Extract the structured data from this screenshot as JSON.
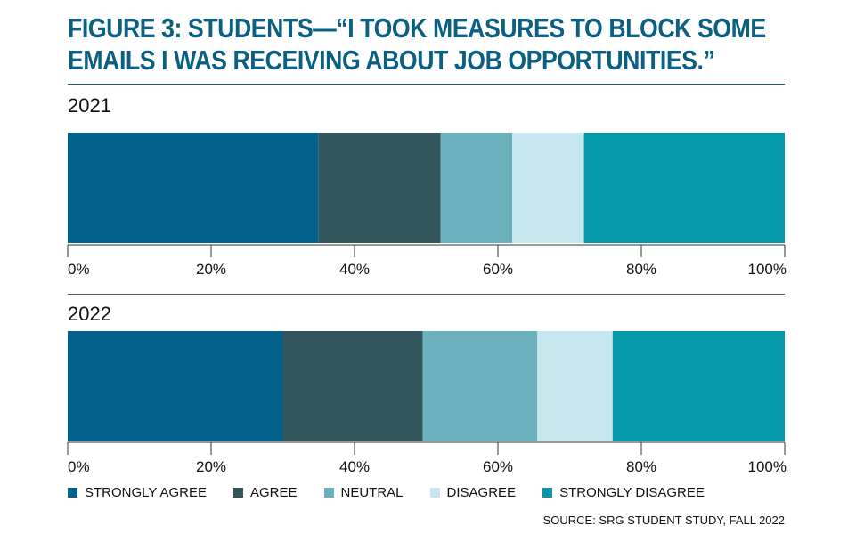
{
  "title_line1": "FIGURE 3: STUDENTS—“I TOOK MEASURES TO BLOCK SOME",
  "title_line2": "EMAILS I WAS RECEIVING ABOUT JOB OPPORTUNITIES.”",
  "source": "SOURCE: SRG STUDENT STUDY, FALL 2022",
  "chart_data": {
    "type": "bar",
    "orientation": "horizontal-stacked-100",
    "title": "FIGURE 3: STUDENTS—“I TOOK MEASURES TO BLOCK SOME EMAILS I WAS RECEIVING ABOUT JOB OPPORTUNITIES.”",
    "categories": [
      "2021",
      "2022"
    ],
    "xlim": [
      0,
      100
    ],
    "xticks": [
      "0%",
      "20%",
      "40%",
      "60%",
      "80%",
      "100%"
    ],
    "grid": false,
    "legend_position": "bottom",
    "series": [
      {
        "name": "STRONGLY AGREE",
        "color": "#02618a",
        "values": [
          35,
          30
        ]
      },
      {
        "name": "AGREE",
        "color": "#33555c",
        "values": [
          17,
          19.5
        ]
      },
      {
        "name": "NEUTRAL",
        "color": "#6cb0be",
        "values": [
          10,
          16
        ]
      },
      {
        "name": "DISAGREE",
        "color": "#c6e7ef",
        "values": [
          10,
          10.5
        ]
      },
      {
        "name": "STRONGLY DISAGREE",
        "color": "#0598a8",
        "values": [
          28,
          24
        ]
      }
    ]
  }
}
